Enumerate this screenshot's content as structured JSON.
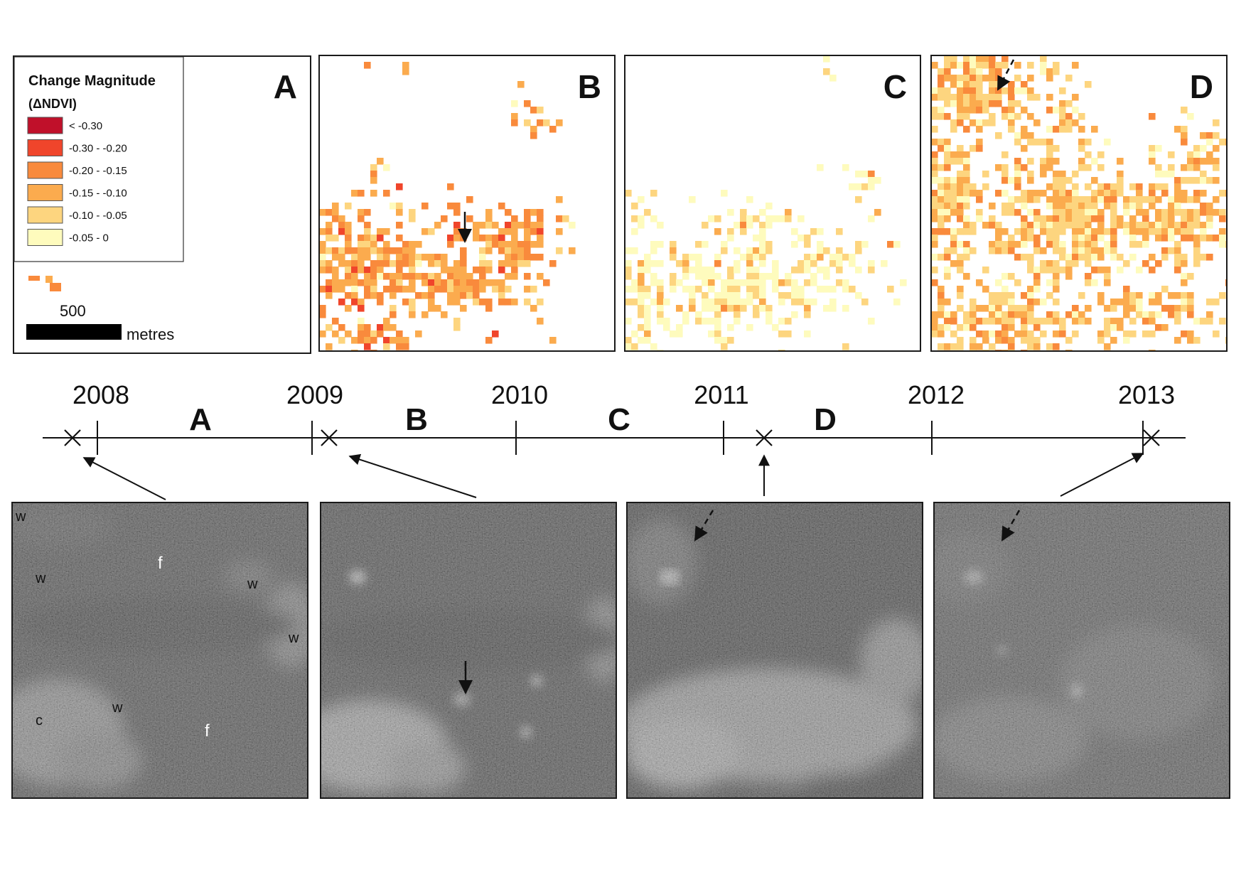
{
  "legend": {
    "title_line1": "Change Magnitude",
    "title_line2": "(ΔNDVI)",
    "classes": [
      {
        "label": "< -0.30",
        "color": "#c0102a"
      },
      {
        "label": "-0.30 - -0.20",
        "color": "#f0452b"
      },
      {
        "label": "-0.20 - -0.15",
        "color": "#f98a3c"
      },
      {
        "label": "-0.15 - -0.10",
        "color": "#fbab4e"
      },
      {
        "label": "-0.10 - -0.05",
        "color": "#fdd57f"
      },
      {
        "label": "-0.05 - 0",
        "color": "#fefbbd"
      }
    ]
  },
  "scale_bar": {
    "value": "500",
    "unit": "metres"
  },
  "change_panels": [
    {
      "letter": "A"
    },
    {
      "letter": "B"
    },
    {
      "letter": "C"
    },
    {
      "letter": "D"
    }
  ],
  "timeline": {
    "years": [
      "2008",
      "2009",
      "2010",
      "2011",
      "2012",
      "2013"
    ],
    "periods": [
      "A",
      "B",
      "C",
      "D"
    ]
  },
  "image_annotations": {
    "water": "w",
    "forest": "f",
    "cleared": "c"
  },
  "colors": {
    "frame": "#1a1a1a",
    "image_dark": "#4a4a4a",
    "image_light": "#c8c8c8"
  }
}
